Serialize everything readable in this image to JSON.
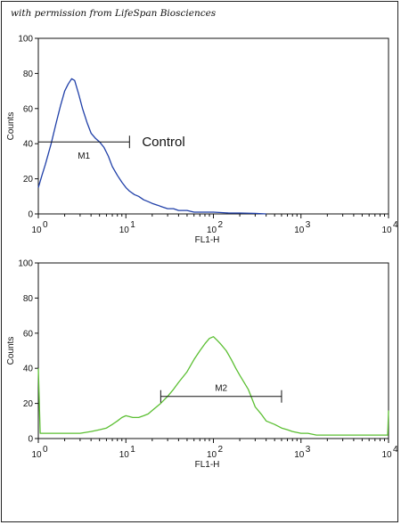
{
  "watermark": "with permission from LifeSpan Biosciences",
  "chart_data": [
    {
      "type": "area",
      "xscale": "log",
      "xlabel": "FL1-H",
      "ylabel": "Counts",
      "xlim": [
        1,
        10000
      ],
      "ylim": [
        0,
        100
      ],
      "x_ticks": [
        "10",
        "10",
        "10",
        "10",
        "10"
      ],
      "x_tick_exps": [
        "0",
        "1",
        "2",
        "3",
        "4"
      ],
      "y_ticks": [
        "0",
        "20",
        "40",
        "60",
        "80",
        "100"
      ],
      "series": [
        {
          "color": "#1f3fa8",
          "x": [
            1.0,
            1.1,
            1.2,
            1.4,
            1.6,
            1.8,
            2.0,
            2.2,
            2.4,
            2.6,
            2.9,
            3.2,
            3.6,
            4.0,
            4.5,
            5.0,
            5.6,
            6.3,
            7.0,
            8.0,
            9.0,
            10.0,
            11.0,
            12.5,
            14,
            16,
            18,
            20,
            23,
            26,
            30,
            35,
            40,
            50,
            60,
            80,
            100,
            150,
            200,
            300,
            400
          ],
          "y": [
            15,
            22,
            28,
            40,
            52,
            62,
            70,
            74,
            77,
            76,
            68,
            60,
            52,
            46,
            43,
            41,
            38,
            33,
            27,
            22,
            18,
            15,
            13,
            11,
            10,
            8,
            7,
            6,
            5,
            4,
            3,
            3,
            2,
            2,
            1,
            1,
            1,
            0.5,
            0.5,
            0.3,
            0
          ]
        }
      ],
      "markers": [
        {
          "label": "M1",
          "x_range": [
            1,
            11
          ],
          "y": 41
        }
      ],
      "annotation": {
        "text": "Control",
        "x": 11,
        "y": 41
      }
    },
    {
      "type": "area",
      "xscale": "log",
      "xlabel": "FL1-H",
      "ylabel": "Counts",
      "xlim": [
        1,
        10000
      ],
      "ylim": [
        0,
        100
      ],
      "x_ticks": [
        "10",
        "10",
        "10",
        "10",
        "10"
      ],
      "x_tick_exps": [
        "0",
        "1",
        "2",
        "3",
        "4"
      ],
      "y_ticks": [
        "0",
        "20",
        "40",
        "60",
        "80",
        "100"
      ],
      "series": [
        {
          "color": "#5bbf32",
          "x": [
            1.0,
            1.05,
            1.2,
            1.5,
            2.0,
            3.0,
            4.0,
            5.0,
            6.0,
            7.0,
            8.0,
            9.0,
            10,
            12,
            14,
            16,
            18,
            20,
            25,
            30,
            35,
            40,
            50,
            60,
            70,
            80,
            90,
            100,
            110,
            120,
            140,
            160,
            180,
            200,
            250,
            300,
            350,
            400,
            500,
            600,
            700,
            800,
            1000,
            1200,
            1500,
            2000,
            3000,
            5000,
            8000,
            9800,
            10000
          ],
          "y": [
            40,
            3,
            3,
            3,
            3,
            3,
            4,
            5,
            6,
            8,
            10,
            12,
            13,
            12,
            12,
            13,
            14,
            16,
            20,
            24,
            28,
            32,
            38,
            45,
            50,
            54,
            57,
            58,
            56,
            54,
            50,
            45,
            40,
            36,
            28,
            18,
            14,
            10,
            8,
            6,
            5,
            4,
            3,
            3,
            2,
            2,
            2,
            2,
            2,
            2,
            16
          ]
        }
      ],
      "markers": [
        {
          "label": "M2",
          "x_range": [
            25,
            600
          ],
          "y": 24
        }
      ]
    }
  ]
}
